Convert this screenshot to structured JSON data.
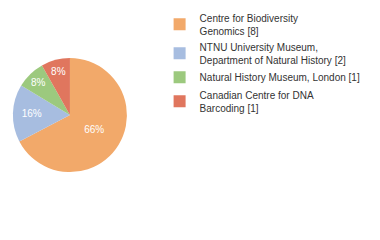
{
  "chart_data": {
    "type": "pie",
    "categories": [
      "Centre for Biodiversity\nGenomics [8]",
      "NTNU University Museum,\nDepartment of Natural History [2]",
      "Natural History Museum, London [1]",
      "Canadian Centre for DNA\nBarcoding [1]"
    ],
    "values": [
      66,
      16,
      8,
      8
    ],
    "value_labels": [
      "66%",
      "16%",
      "8%",
      "8%"
    ],
    "colors": [
      "#f2a96a",
      "#a7bde0",
      "#9cc97e",
      "#e0765e"
    ],
    "data_labels": true,
    "legend": "right"
  }
}
